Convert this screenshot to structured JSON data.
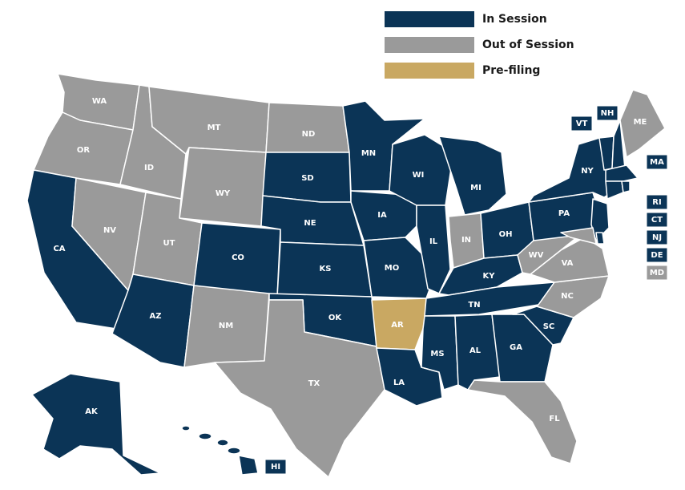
{
  "legend": {
    "in_session": {
      "label": "In Session",
      "color": "#0b3456"
    },
    "out_of_session": {
      "label": "Out of Session",
      "color": "#9a9a9a"
    },
    "pre_filing": {
      "label": "Pre-filing",
      "color": "#c9a862"
    }
  },
  "status_colors": {
    "in": "#0b3456",
    "out": "#9a9a9a",
    "pre": "#c9a862"
  },
  "states": [
    {
      "abbr": "WA",
      "status": "out"
    },
    {
      "abbr": "OR",
      "status": "out"
    },
    {
      "abbr": "CA",
      "status": "in"
    },
    {
      "abbr": "NV",
      "status": "out"
    },
    {
      "abbr": "ID",
      "status": "out"
    },
    {
      "abbr": "MT",
      "status": "out"
    },
    {
      "abbr": "WY",
      "status": "out"
    },
    {
      "abbr": "UT",
      "status": "out"
    },
    {
      "abbr": "AZ",
      "status": "in"
    },
    {
      "abbr": "CO",
      "status": "in"
    },
    {
      "abbr": "NM",
      "status": "out"
    },
    {
      "abbr": "ND",
      "status": "out"
    },
    {
      "abbr": "SD",
      "status": "in"
    },
    {
      "abbr": "NE",
      "status": "in"
    },
    {
      "abbr": "KS",
      "status": "in"
    },
    {
      "abbr": "OK",
      "status": "in"
    },
    {
      "abbr": "TX",
      "status": "out"
    },
    {
      "abbr": "MN",
      "status": "in"
    },
    {
      "abbr": "IA",
      "status": "in"
    },
    {
      "abbr": "MO",
      "status": "in"
    },
    {
      "abbr": "AR",
      "status": "pre"
    },
    {
      "abbr": "LA",
      "status": "in"
    },
    {
      "abbr": "WI",
      "status": "in"
    },
    {
      "abbr": "IL",
      "status": "in"
    },
    {
      "abbr": "MI",
      "status": "in"
    },
    {
      "abbr": "IN",
      "status": "out"
    },
    {
      "abbr": "OH",
      "status": "in"
    },
    {
      "abbr": "KY",
      "status": "in"
    },
    {
      "abbr": "TN",
      "status": "in"
    },
    {
      "abbr": "MS",
      "status": "in"
    },
    {
      "abbr": "AL",
      "status": "in"
    },
    {
      "abbr": "GA",
      "status": "in"
    },
    {
      "abbr": "FL",
      "status": "out"
    },
    {
      "abbr": "SC",
      "status": "in"
    },
    {
      "abbr": "NC",
      "status": "out"
    },
    {
      "abbr": "VA",
      "status": "out"
    },
    {
      "abbr": "WV",
      "status": "out"
    },
    {
      "abbr": "PA",
      "status": "in"
    },
    {
      "abbr": "NY",
      "status": "in"
    },
    {
      "abbr": "ME",
      "status": "out"
    },
    {
      "abbr": "AK",
      "status": "in"
    },
    {
      "abbr": "HI",
      "status": "in"
    },
    {
      "abbr": "VT",
      "status": "in"
    },
    {
      "abbr": "NH",
      "status": "in"
    },
    {
      "abbr": "MA",
      "status": "in"
    },
    {
      "abbr": "RI",
      "status": "in"
    },
    {
      "abbr": "CT",
      "status": "in"
    },
    {
      "abbr": "NJ",
      "status": "in"
    },
    {
      "abbr": "DE",
      "status": "in"
    },
    {
      "abbr": "MD",
      "status": "out"
    }
  ]
}
